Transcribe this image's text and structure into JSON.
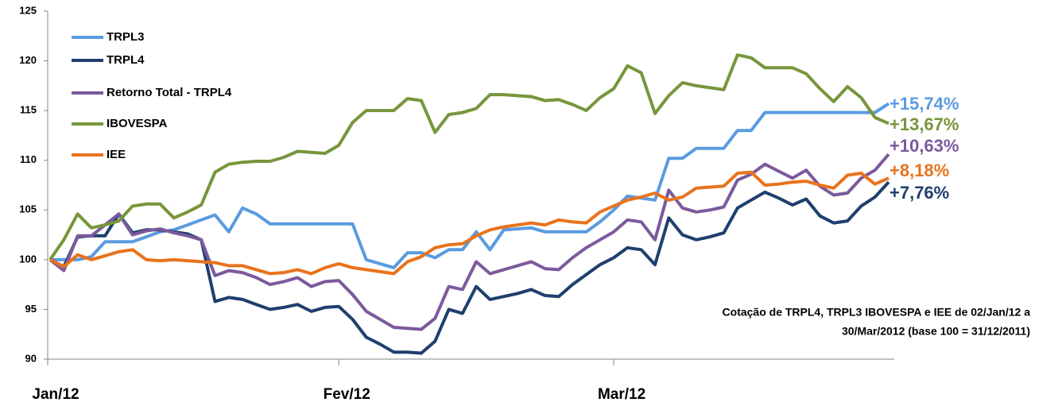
{
  "chart_data": {
    "type": "line",
    "categories": [
      "Jan/12",
      null,
      null,
      null,
      null,
      null,
      null,
      null,
      null,
      null,
      null,
      null,
      null,
      null,
      null,
      null,
      null,
      null,
      null,
      null,
      null,
      "Fev/12",
      null,
      null,
      null,
      null,
      null,
      null,
      null,
      null,
      null,
      null,
      null,
      null,
      null,
      null,
      null,
      null,
      null,
      null,
      null,
      "Mar/12",
      null,
      null,
      null,
      null,
      null,
      null,
      null,
      null,
      null,
      null,
      null,
      null,
      null,
      null,
      null,
      null,
      null,
      null,
      null,
      null
    ],
    "ylim": [
      90,
      125
    ],
    "yticks": [
      90,
      95,
      100,
      105,
      110,
      115,
      120,
      125
    ],
    "grid": false,
    "legend": "top-left",
    "note": [
      "Cotação de TRPL4, TRPL3 IBOVESPA e IEE de 02/Jan/12 a",
      "30/Mar/2012  (base 100 = 31/12/2011)"
    ],
    "series": [
      {
        "name": "TRPL3",
        "color": "#5a9be0",
        "end_label": "+15,74%",
        "values": [
          100,
          100,
          100,
          100.3,
          101.8,
          101.8,
          101.8,
          102.3,
          102.8,
          103,
          103.5,
          104,
          104.5,
          102.8,
          105.2,
          104.6,
          103.6,
          103.6,
          103.6,
          103.6,
          103.6,
          103.6,
          103.6,
          100,
          99.6,
          99.2,
          100.7,
          100.7,
          100.2,
          101,
          101,
          102.8,
          101,
          103,
          103.1,
          103.2,
          102.8,
          102.8,
          102.8,
          102.8,
          103.8,
          105,
          106.4,
          106.2,
          106,
          110.2,
          110.2,
          111.2,
          111.2,
          111.2,
          113,
          113,
          114.8,
          114.8,
          114.8,
          114.8,
          114.8,
          114.8,
          114.8,
          114.8,
          114.8,
          115.7
        ]
      },
      {
        "name": "TRPL4",
        "color": "#1f3f6e",
        "end_label": "+7,76%",
        "values": [
          100,
          99.3,
          102.3,
          102.4,
          102.4,
          104.6,
          102.7,
          103,
          103,
          102.8,
          102.6,
          102,
          95.8,
          96.2,
          96,
          95.5,
          95,
          95.2,
          95.5,
          94.8,
          95.2,
          95.3,
          94,
          92.2,
          91.5,
          90.7,
          90.7,
          90.6,
          91.8,
          95,
          94.6,
          97.3,
          96,
          96.3,
          96.6,
          97,
          96.4,
          96.3,
          97.5,
          98.5,
          99.5,
          100.2,
          101.2,
          101,
          99.5,
          104.2,
          102.5,
          102,
          102.3,
          102.7,
          105.2,
          106,
          106.8,
          106.2,
          105.5,
          106.1,
          104.4,
          103.7,
          103.9,
          105.4,
          106.3,
          107.8
        ]
      },
      {
        "name": "Retorno Total - TRPL4",
        "color": "#7b5a9c",
        "end_label": "+10,63%",
        "values": [
          100,
          98.9,
          102.4,
          102.4,
          103.5,
          104.6,
          102.5,
          102.9,
          103.1,
          102.7,
          102.4,
          102,
          98.4,
          98.9,
          98.7,
          98.2,
          97.5,
          97.8,
          98.2,
          97.3,
          97.8,
          97.9,
          96.5,
          94.8,
          94,
          93.2,
          93.1,
          93,
          94.1,
          97.3,
          97,
          99.8,
          98.6,
          99,
          99.4,
          99.8,
          99.1,
          99,
          100.2,
          101.2,
          102,
          102.8,
          104,
          103.8,
          102,
          107,
          105.2,
          104.8,
          105,
          105.3,
          108,
          108.6,
          109.6,
          108.9,
          108.2,
          109,
          107.4,
          106.5,
          106.7,
          108.2,
          109,
          110.6
        ]
      },
      {
        "name": "IBOVESPA",
        "color": "#77963c",
        "end_label": "+13,67%",
        "values": [
          100,
          102,
          104.6,
          103.2,
          103.5,
          103.9,
          105.4,
          105.6,
          105.6,
          104.2,
          104.8,
          105.5,
          108.8,
          109.6,
          109.8,
          109.9,
          109.9,
          110.3,
          110.9,
          110.8,
          110.7,
          111.5,
          113.8,
          115,
          115,
          115,
          116.2,
          116,
          112.8,
          114.6,
          114.8,
          115.2,
          116.6,
          116.6,
          116.5,
          116.4,
          116,
          116.1,
          115.6,
          115,
          116.3,
          117.2,
          119.5,
          118.8,
          114.7,
          116.5,
          117.8,
          117.5,
          117.3,
          117.1,
          120.6,
          120.3,
          119.3,
          119.3,
          119.3,
          118.7,
          117.2,
          115.9,
          117.4,
          116.3,
          114.3,
          113.7
        ]
      },
      {
        "name": "IEE",
        "color": "#e8731c",
        "end_label": "+8,18%",
        "values": [
          100,
          99.3,
          100.5,
          100,
          100.4,
          100.8,
          101,
          100,
          99.9,
          100,
          99.9,
          99.8,
          99.7,
          99.4,
          99.4,
          99,
          98.6,
          98.7,
          99,
          98.6,
          99.2,
          99.6,
          99.2,
          99,
          98.8,
          98.6,
          99.8,
          100.3,
          101.2,
          101.5,
          101.6,
          102.4,
          103,
          103.3,
          103.5,
          103.7,
          103.5,
          104,
          103.8,
          103.7,
          104.8,
          105.4,
          106,
          106.3,
          106.7,
          106,
          106.3,
          107.2,
          107.3,
          107.4,
          108.7,
          108.8,
          107.5,
          107.6,
          107.8,
          107.9,
          107.5,
          107.2,
          108.5,
          108.7,
          107.6,
          108.2
        ]
      }
    ]
  }
}
